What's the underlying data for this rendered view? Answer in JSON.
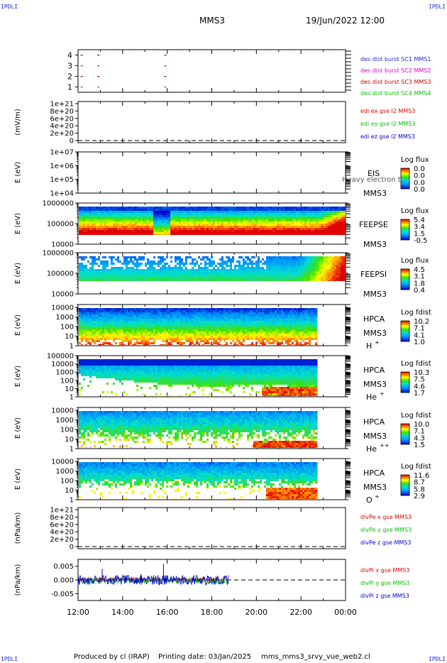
{
  "header": {
    "corner_tl": "IPDLI",
    "corner_tr": "IPDLI",
    "title": "MMS3",
    "datetime": "19/Jun/2022 12:00"
  },
  "footer": {
    "corner_bl": "IPDLI",
    "corner_br": "IPDLI",
    "produced_by": "Produced by cl (IRAP)",
    "printing_date": "Printing date: 03/Jan/2025",
    "filename": "mms_mms3_srvy_vue_web2.cl"
  },
  "colors": {
    "mms1": "#1a2bd8",
    "mms2": "#d400d4",
    "mms3": "#d40000",
    "mms4": "#00c000",
    "x": "#e00000",
    "y": "#00c000",
    "z": "#0000d0"
  },
  "chart_data": [
    {
      "type": "scatter",
      "panel": "burst",
      "ylim": [
        0.5,
        4.5
      ],
      "yticks": [
        "1",
        "2",
        "3",
        "4"
      ],
      "series": [
        {
          "name": "des dist burst SC1 MMS1",
          "x": [
            "12:07",
            "12:52",
            "15:52"
          ],
          "y": [
            4,
            4,
            4
          ]
        },
        {
          "name": "des dist burst SC2 MMS2",
          "x": [
            "12:07",
            "12:52",
            "15:52"
          ],
          "y": [
            3,
            3,
            3
          ]
        },
        {
          "name": "des dist burst SC3 MMS3",
          "x": [
            "12:07",
            "12:52",
            "15:52"
          ],
          "y": [
            2,
            2,
            2
          ]
        },
        {
          "name": "des dist burst SC4 MMS4",
          "x": [
            "12:07",
            "12:52",
            "15:52"
          ],
          "y": [
            1,
            1,
            1
          ]
        }
      ]
    },
    {
      "type": "line",
      "panel": "edi",
      "ylabel": "(mV/m)",
      "yticks": [
        "0",
        "2e+20",
        "4e+20",
        "6e+20",
        "8e+20",
        "1e+21"
      ],
      "series": [
        {
          "name": "edi ex gse l2 MMS3",
          "values": []
        },
        {
          "name": "edi ey gse l2 MMS3",
          "values": []
        },
        {
          "name": "edi ez gse l2 MMS3",
          "values": []
        }
      ]
    },
    {
      "type": "heatmap",
      "panel": "EIS",
      "ylabel": "E (eV)",
      "yscale": "log",
      "ylim": [
        10000,
        10000000
      ],
      "yticks": [
        "1e+04",
        "1e+05",
        "1e+06",
        "1e+07"
      ],
      "instrument": "EIS",
      "spacecraft": "MMS3",
      "overlay": "Heavy electron to",
      "colorbar": {
        "title": "Log flux",
        "ticks": [
          "0.0",
          "0.0",
          "0.0",
          "0.0"
        ]
      },
      "data_end": null
    },
    {
      "type": "heatmap",
      "panel": "FEEPSE",
      "ylabel": "E (eV)",
      "yscale": "log",
      "ylim": [
        10000,
        1000000
      ],
      "yticks": [
        "10000",
        "100000",
        "1000000"
      ],
      "instrument": "FEEPSE",
      "spacecraft": "MMS3",
      "colorbar": {
        "title": "Log flux",
        "ticks": [
          "5.4",
          "3.4",
          "1.5",
          "-0.5"
        ]
      },
      "data_end": "24:00"
    },
    {
      "type": "heatmap",
      "panel": "FEEPSI",
      "ylabel": "E (eV)",
      "yscale": "log",
      "ylim": [
        10000,
        1000000
      ],
      "yticks": [
        "10000",
        "100000",
        "1000000"
      ],
      "instrument": "FEEPSI",
      "spacecraft": "MMS3",
      "colorbar": {
        "title": "Log flux",
        "ticks": [
          "4.5",
          "3.1",
          "1.8",
          "0.4"
        ]
      },
      "data_end": "24:00"
    },
    {
      "type": "heatmap",
      "panel": "HPCA H+",
      "ylabel": "E (eV)",
      "yscale": "log",
      "ylim": [
        1,
        20000
      ],
      "yticks": [
        "1",
        "10",
        "100",
        "1000",
        "10000"
      ],
      "instrument": "HPCA",
      "spacecraft": "MMS3",
      "species": "H",
      "species_sup": "+",
      "colorbar": {
        "title": "Log fdist",
        "ticks": [
          "10.2",
          "7.1",
          "4.1",
          "1.0"
        ]
      },
      "data_end": "22:45"
    },
    {
      "type": "heatmap",
      "panel": "HPCA He+",
      "ylabel": "E (eV)",
      "yscale": "log",
      "ylim": [
        1,
        100000
      ],
      "yticks": [
        "1",
        "10",
        "100",
        "1000",
        "10000",
        "100000"
      ],
      "instrument": "HPCA",
      "spacecraft": "MMS3",
      "species": "He",
      "species_sup": "+",
      "colorbar": {
        "title": "Log fdist",
        "ticks": [
          "10.3",
          "7.5",
          "4.6",
          "1.7"
        ]
      },
      "data_end": "22:45"
    },
    {
      "type": "heatmap",
      "panel": "HPCA He++",
      "ylabel": "E (eV)",
      "yscale": "log",
      "ylim": [
        1,
        20000
      ],
      "yticks": [
        "1",
        "10",
        "100",
        "1000",
        "10000"
      ],
      "instrument": "HPCA",
      "spacecraft": "MMS3",
      "species": "He",
      "species_sup": "++",
      "colorbar": {
        "title": "Log fdist",
        "ticks": [
          "10.0",
          "7.1",
          "4.3",
          "1.5"
        ]
      },
      "data_end": "22:45"
    },
    {
      "type": "heatmap",
      "panel": "HPCA O+",
      "ylabel": "E (eV)",
      "yscale": "log",
      "ylim": [
        1,
        20000
      ],
      "yticks": [
        "1",
        "10",
        "100",
        "1000",
        "10000"
      ],
      "instrument": "HPCA",
      "spacecraft": "MMS3",
      "species": "O",
      "species_sup": "+",
      "colorbar": {
        "title": "Log fdist",
        "ticks": [
          "11.6",
          "8.7",
          "5.8",
          "2.9"
        ]
      },
      "data_end": "22:45"
    },
    {
      "type": "line",
      "panel": "divPe",
      "ylabel": "(nPa/km)",
      "yticks": [
        "0",
        "2e+20",
        "4e+20",
        "6e+20",
        "8e+20",
        "1e+21"
      ],
      "series": [
        {
          "name": "divPe x gse MMS3",
          "values": []
        },
        {
          "name": "divPe y gse MMS3",
          "values": []
        },
        {
          "name": "divPe z gse MMS3",
          "values": []
        }
      ]
    },
    {
      "type": "line",
      "panel": "divPi",
      "ylabel": "(nPa/km)",
      "ylim": [
        -0.0075,
        0.0075
      ],
      "yticks": [
        "-0.005",
        "0.000",
        "0.005"
      ],
      "x_range": [
        "12:00",
        "18:45"
      ],
      "spikes": [
        {
          "x": "13:05",
          "y": 0.004
        },
        {
          "x": "15:50",
          "y": 0.0058
        },
        {
          "x": "14:50",
          "y": 0.0022
        }
      ],
      "series": [
        {
          "name": "divPi x gse MMS3",
          "amplitude": 0.0007
        },
        {
          "name": "divPi y gse MMS3",
          "amplitude": 0.0012
        },
        {
          "name": "divPi z gse MMS3",
          "amplitude": 0.0018
        }
      ]
    }
  ],
  "time_axis": {
    "ticks": [
      "12:00",
      "14:00",
      "16:00",
      "18:00",
      "20:00",
      "22:00",
      "00:00"
    ]
  }
}
